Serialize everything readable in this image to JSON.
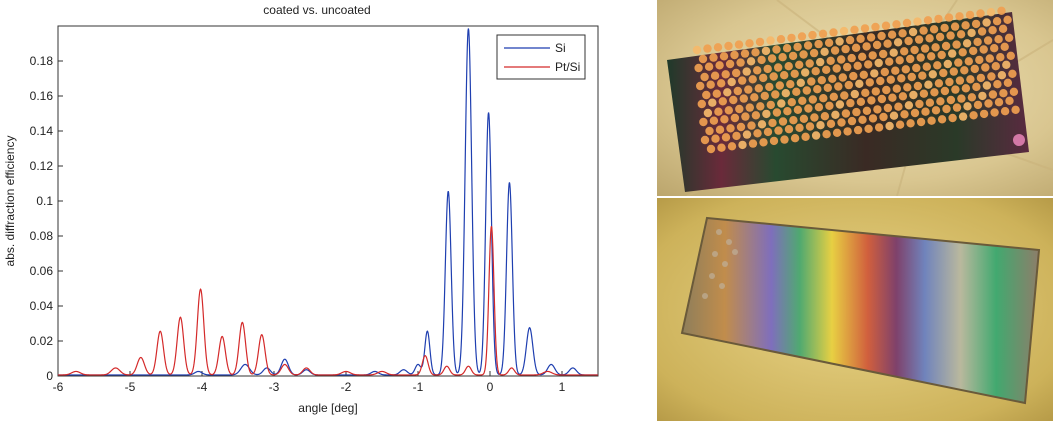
{
  "chart_data": {
    "type": "line",
    "title": "coated vs. uncoated",
    "xlabel": "angle [deg]",
    "ylabel": "abs. diffraction efficiency",
    "xlim": [
      -6,
      1.5
    ],
    "ylim": [
      0,
      0.2
    ],
    "xticks": [
      -6,
      -5,
      -4,
      -3,
      -2,
      -1,
      0,
      1
    ],
    "xtick_labels": [
      "-6",
      "-5",
      "-4",
      "-3",
      "-2",
      "-1",
      "0",
      "1"
    ],
    "yticks": [
      0,
      0.02,
      0.04,
      0.06,
      0.08,
      0.1,
      0.12,
      0.14,
      0.16,
      0.18
    ],
    "ytick_labels": [
      "0",
      "0.02",
      "0.04",
      "0.06",
      "0.08",
      "0.1",
      "0.12",
      "0.14",
      "0.16",
      "0.18"
    ],
    "grid": false,
    "legend_position": "top-right",
    "series": [
      {
        "name": "Si",
        "color": "#1f3fb0",
        "peaks": [
          {
            "x": -4.05,
            "y": 0.002,
            "w": 0.05
          },
          {
            "x": -3.4,
            "y": 0.006,
            "w": 0.06
          },
          {
            "x": -3.1,
            "y": 0.004,
            "w": 0.05
          },
          {
            "x": -2.85,
            "y": 0.009,
            "w": 0.05
          },
          {
            "x": -2.55,
            "y": 0.003,
            "w": 0.05
          },
          {
            "x": -1.6,
            "y": 0.002,
            "w": 0.05
          },
          {
            "x": -1.2,
            "y": 0.003,
            "w": 0.05
          },
          {
            "x": -1.0,
            "y": 0.006,
            "w": 0.04
          },
          {
            "x": -0.87,
            "y": 0.025,
            "w": 0.035
          },
          {
            "x": -0.58,
            "y": 0.105,
            "w": 0.04
          },
          {
            "x": -0.3,
            "y": 0.198,
            "w": 0.045
          },
          {
            "x": -0.02,
            "y": 0.15,
            "w": 0.04
          },
          {
            "x": 0.27,
            "y": 0.11,
            "w": 0.04
          },
          {
            "x": 0.55,
            "y": 0.027,
            "w": 0.045
          },
          {
            "x": 0.85,
            "y": 0.006,
            "w": 0.05
          },
          {
            "x": 1.15,
            "y": 0.004,
            "w": 0.05
          }
        ]
      },
      {
        "name": "Pt/Si",
        "color": "#d42a2a",
        "peaks": [
          {
            "x": -5.75,
            "y": 0.002,
            "w": 0.06
          },
          {
            "x": -5.2,
            "y": 0.004,
            "w": 0.06
          },
          {
            "x": -4.85,
            "y": 0.01,
            "w": 0.05
          },
          {
            "x": -4.58,
            "y": 0.025,
            "w": 0.045
          },
          {
            "x": -4.3,
            "y": 0.033,
            "w": 0.045
          },
          {
            "x": -4.02,
            "y": 0.049,
            "w": 0.045
          },
          {
            "x": -3.72,
            "y": 0.022,
            "w": 0.045
          },
          {
            "x": -3.44,
            "y": 0.03,
            "w": 0.045
          },
          {
            "x": -3.17,
            "y": 0.023,
            "w": 0.045
          },
          {
            "x": -2.85,
            "y": 0.006,
            "w": 0.05
          },
          {
            "x": -2.55,
            "y": 0.004,
            "w": 0.05
          },
          {
            "x": -2.0,
            "y": 0.002,
            "w": 0.06
          },
          {
            "x": -1.5,
            "y": 0.002,
            "w": 0.06
          },
          {
            "x": -0.9,
            "y": 0.011,
            "w": 0.04
          },
          {
            "x": -0.6,
            "y": 0.005,
            "w": 0.04
          },
          {
            "x": -0.3,
            "y": 0.005,
            "w": 0.04
          },
          {
            "x": 0.02,
            "y": 0.085,
            "w": 0.035
          },
          {
            "x": 0.3,
            "y": 0.004,
            "w": 0.04
          },
          {
            "x": 0.8,
            "y": 0.002,
            "w": 0.06
          }
        ]
      }
    ]
  },
  "photos": [
    {
      "name": "photo-hexagonal-grating"
    },
    {
      "name": "photo-rainbow-grating"
    }
  ]
}
